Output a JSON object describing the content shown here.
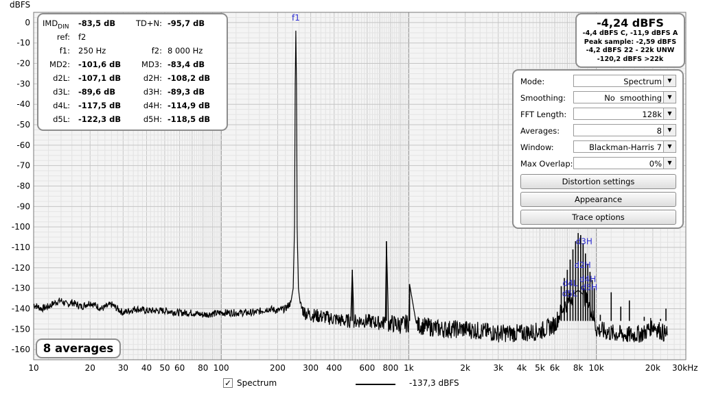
{
  "chart_data": {
    "type": "line",
    "title": "",
    "ylabel": "dBFS",
    "xlabel": "",
    "xscale": "log",
    "xlim": [
      10,
      30000
    ],
    "ylim": [
      -165,
      5
    ],
    "grid": true,
    "x_ticks": [
      {
        "v": 10,
        "t": "10"
      },
      {
        "v": 20,
        "t": "20"
      },
      {
        "v": 30,
        "t": "30"
      },
      {
        "v": 40,
        "t": "40"
      },
      {
        "v": 50,
        "t": "50"
      },
      {
        "v": 60,
        "t": "60"
      },
      {
        "v": 80,
        "t": "80"
      },
      {
        "v": 100,
        "t": "100"
      },
      {
        "v": 200,
        "t": "200"
      },
      {
        "v": 300,
        "t": "300"
      },
      {
        "v": 400,
        "t": "400"
      },
      {
        "v": 600,
        "t": "600"
      },
      {
        "v": 800,
        "t": "800"
      },
      {
        "v": 1000,
        "t": "1k"
      },
      {
        "v": 2000,
        "t": "2k"
      },
      {
        "v": 3000,
        "t": "3k"
      },
      {
        "v": 4000,
        "t": "4k"
      },
      {
        "v": 5000,
        "t": "5k"
      },
      {
        "v": 6000,
        "t": "6k"
      },
      {
        "v": 8000,
        "t": "8k"
      },
      {
        "v": 10000,
        "t": "10k"
      },
      {
        "v": 20000,
        "t": "20k"
      },
      {
        "v": 30000,
        "t": "30kHz"
      }
    ],
    "y_ticks": [
      0,
      -10,
      -20,
      -30,
      -40,
      -50,
      -60,
      -70,
      -80,
      -90,
      -100,
      -110,
      -120,
      -130,
      -140,
      -150,
      -160
    ],
    "series": [
      {
        "name": "Spectrum",
        "color": "#000000",
        "x": [
          10,
          11,
          12,
          13,
          14,
          15,
          16,
          18,
          20,
          23,
          26,
          30,
          35,
          40,
          50,
          60,
          70,
          80,
          100,
          120,
          150,
          180,
          200,
          220,
          235,
          242,
          246,
          248,
          250,
          252,
          254,
          258,
          265,
          280,
          300,
          350,
          400,
          450,
          490,
          500,
          510,
          600,
          700,
          750,
          760,
          780,
          900,
          1000,
          1010,
          1100,
          1500,
          2000,
          3000,
          4000,
          5000,
          6000,
          6500,
          7000,
          7500,
          8000,
          8500,
          9000,
          9500,
          10000,
          12000,
          15000,
          18000,
          20000,
          22000,
          24000
        ],
        "y": [
          -138,
          -140,
          -139,
          -137,
          -136,
          -138,
          -137,
          -139,
          -137,
          -140,
          -138,
          -142,
          -140,
          -141,
          -141,
          -142,
          -142,
          -143,
          -142,
          -142,
          -142,
          -140,
          -141,
          -140,
          -137,
          -130,
          -100,
          -30,
          -4,
          -30,
          -100,
          -130,
          -139,
          -142,
          -143,
          -144,
          -145,
          -146,
          -146,
          -121,
          -146,
          -146,
          -147,
          -147,
          -107,
          -147,
          -148,
          -147,
          -128,
          -148,
          -150,
          -150,
          -152,
          -152,
          -151,
          -148,
          -141,
          -137,
          -133,
          -131,
          -133,
          -137,
          -141,
          -150,
          -152,
          -153,
          -152,
          -148,
          -151,
          -153
        ]
      }
    ],
    "peak_spikes": [
      {
        "x": 500,
        "y": -121
      },
      {
        "x": 760,
        "y": -107
      },
      {
        "x": 1010,
        "y": -128
      },
      {
        "x": 6500,
        "y": -129
      },
      {
        "x": 6750,
        "y": -125
      },
      {
        "x": 7000,
        "y": -121
      },
      {
        "x": 7250,
        "y": -116
      },
      {
        "x": 7500,
        "y": -111
      },
      {
        "x": 7750,
        "y": -107
      },
      {
        "x": 8000,
        "y": -103
      },
      {
        "x": 8250,
        "y": -104
      },
      {
        "x": 8500,
        "y": -108
      },
      {
        "x": 8750,
        "y": -113
      },
      {
        "x": 9000,
        "y": -118
      },
      {
        "x": 9250,
        "y": -122
      },
      {
        "x": 9500,
        "y": -126
      },
      {
        "x": 9750,
        "y": -130
      },
      {
        "x": 10500,
        "y": -143
      },
      {
        "x": 12000,
        "y": -132
      },
      {
        "x": 13500,
        "y": -139
      },
      {
        "x": 15000,
        "y": -136
      },
      {
        "x": 18000,
        "y": -144
      },
      {
        "x": 22000,
        "y": -145
      },
      {
        "x": 23500,
        "y": -140
      }
    ],
    "annotations": [
      {
        "text": "f1",
        "x": 250,
        "y": 1
      },
      {
        "text": "d3H",
        "x": 8600,
        "y": -108.5
      },
      {
        "text": "d2H",
        "x": 8450,
        "y": -120
      },
      {
        "text": "d4H",
        "x": 9000,
        "y": -127
      },
      {
        "text": "d4L",
        "x": 7250,
        "y": -129
      },
      {
        "text": "d5H",
        "x": 9150,
        "y": -131
      },
      {
        "text": "d5L",
        "x": 7200,
        "y": -134
      }
    ]
  },
  "imd_panel": {
    "rows": [
      {
        "l1": "IMD",
        "l1_sub": "DIN",
        "v1": "-83,5 dB",
        "l2": "TD+N:",
        "v2": "-95,7 dB"
      },
      {
        "l1": "ref:",
        "v1": "f2",
        "l2": "",
        "v2": "",
        "plain": true
      },
      {
        "l1": "f1:",
        "v1": "250 Hz",
        "l2": "f2:",
        "v2": "8 000 Hz",
        "plain": true
      },
      {
        "l1": "MD2:",
        "v1": "-101,6 dB",
        "l2": "MD3:",
        "v2": "-83,4 dB"
      },
      {
        "l1": "d2L:",
        "v1": "-107,1 dB",
        "l2": "d2H:",
        "v2": "-108,2 dB"
      },
      {
        "l1": "d3L:",
        "v1": "-89,6 dB",
        "l2": "d3H:",
        "v2": "-89,3 dB"
      },
      {
        "l1": "d4L:",
        "v1": "-117,5 dB",
        "l2": "d4H:",
        "v2": "-114,9 dB"
      },
      {
        "l1": "d5L:",
        "v1": "-122,3 dB",
        "l2": "d5H:",
        "v2": "-118,5 dB"
      }
    ]
  },
  "level_panel": {
    "main": "-4,24 dBFS",
    "lines": [
      "-4,4 dBFS C, -11,9 dBFS A",
      "Peak sample: -2,59 dBFS",
      "-4,2 dBFS 22 - 22k UNW",
      "-120,2 dBFS >22k"
    ]
  },
  "controls": {
    "rows": [
      {
        "label": "Mode:",
        "value": "Spectrum"
      },
      {
        "label": "Smoothing:",
        "value": "No  smoothing"
      },
      {
        "label": "FFT Length:",
        "value": "128k"
      },
      {
        "label": "Averages:",
        "value": "8"
      },
      {
        "label": "Window:",
        "value": "Blackman-Harris 7"
      },
      {
        "label": "Max Overlap:",
        "value": "0%"
      }
    ],
    "buttons": [
      "Distortion settings",
      "Appearance",
      "Trace options"
    ]
  },
  "averages_label": "8 averages",
  "legend": {
    "checked": "✓",
    "label": "Spectrum",
    "value": "-137,3 dBFS"
  }
}
